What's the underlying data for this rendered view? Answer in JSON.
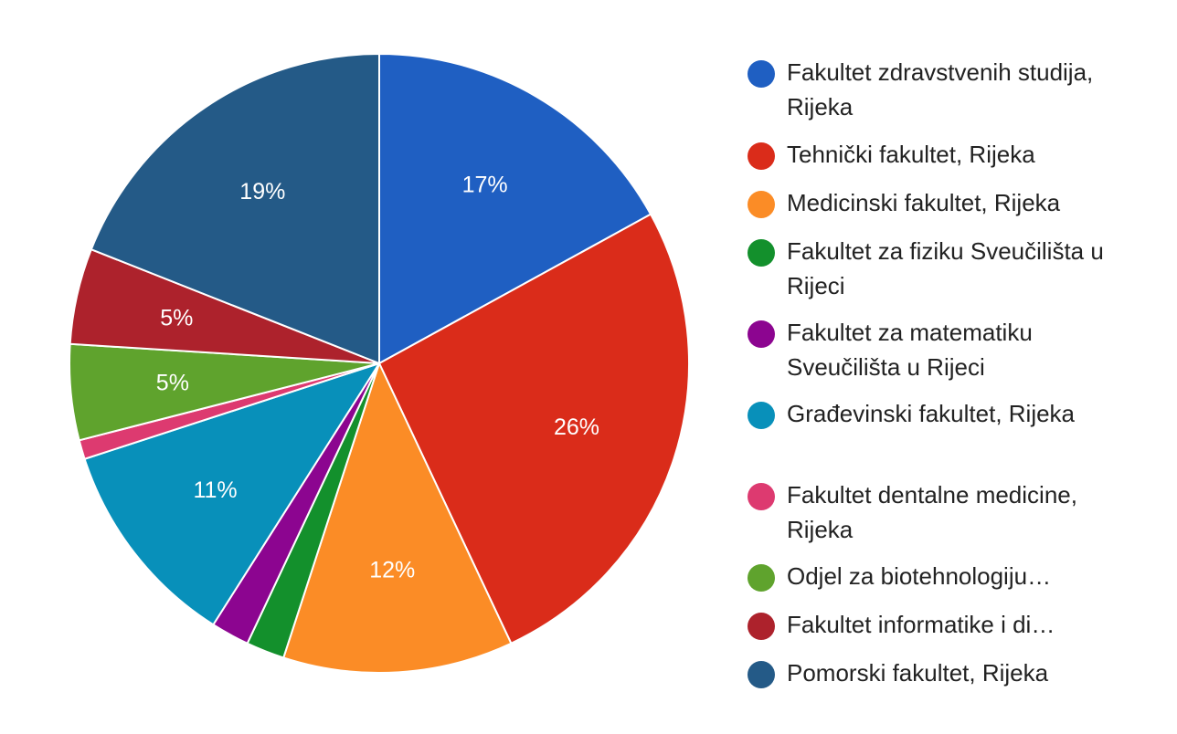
{
  "chart_data": {
    "type": "pie",
    "start_angle_deg": 0,
    "direction": "clockwise",
    "legend_position": "right",
    "slices": [
      {
        "label": "Fakultet zdravstvenih studija, Rijeka",
        "value": 17,
        "display": "17%",
        "color": "#1f5fc2"
      },
      {
        "label": "Tehnički fakultet, Rijeka",
        "value": 26,
        "display": "26%",
        "color": "#da2c1a"
      },
      {
        "label": "Medicinski fakultet, Rijeka",
        "value": 12,
        "display": "12%",
        "color": "#fb8c26"
      },
      {
        "label": "Fakultet za fiziku Sveučilišta u Rijeci",
        "value": 2,
        "display": "",
        "color": "#13902c"
      },
      {
        "label": "Fakultet za matematiku Sveučilišta u Rijeci",
        "value": 2,
        "display": "",
        "color": "#8c0590"
      },
      {
        "label": "Građevinski fakultet, Rijeka",
        "value": 11,
        "display": "11%",
        "color": "#0890ba"
      },
      {
        "label": "Fakultet dentalne medicine, Rijeka",
        "value": 1,
        "display": "",
        "color": "#dd3a70"
      },
      {
        "label": "Odjel za biotehnologiju…",
        "value": 5,
        "display": "5%",
        "color": "#5fa32d"
      },
      {
        "label": "Fakultet informatike i di…",
        "value": 5,
        "display": "5%",
        "color": "#ad222c"
      },
      {
        "label": "Pomorski fakultet, Rijeka",
        "value": 19,
        "display": "19%",
        "color": "#245a87"
      }
    ]
  }
}
